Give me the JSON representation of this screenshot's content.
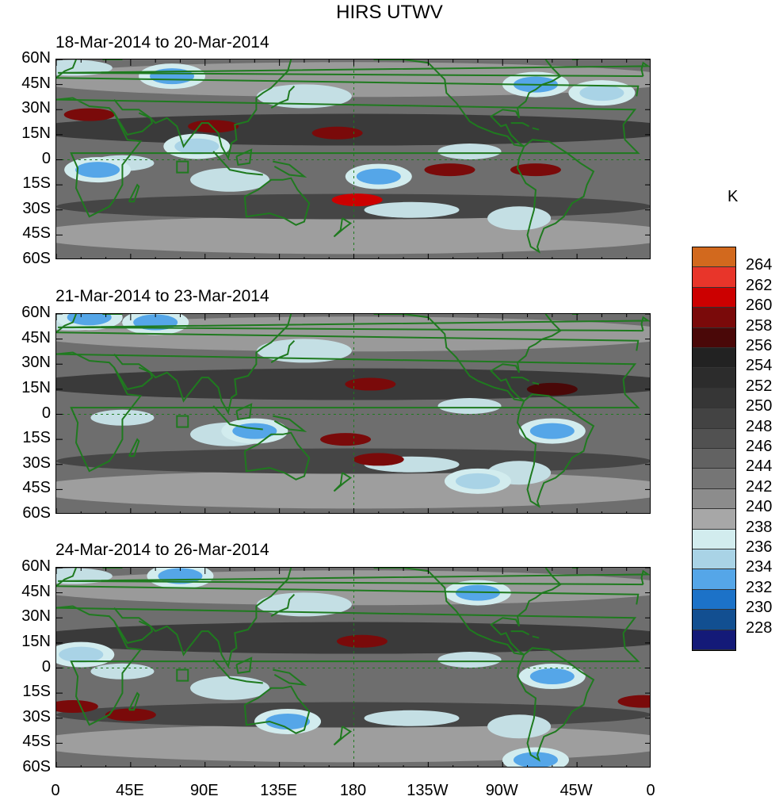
{
  "chart_data": {
    "type": "heatmap",
    "title": "HIRS UTWV",
    "unit": "K",
    "panels": [
      {
        "subtitle": "18-Mar-2014 to 20-Mar-2014",
        "features": [
          {
            "kind": "warm",
            "lon": 170,
            "lat": 16,
            "value": 258
          },
          {
            "kind": "warm",
            "lon": 182,
            "lat": -24,
            "value": 260
          },
          {
            "kind": "warm",
            "lon": 20,
            "lat": 27,
            "value": 258
          },
          {
            "kind": "warm",
            "lon": 95,
            "lat": 20,
            "value": 258
          },
          {
            "kind": "warm",
            "lon": 238,
            "lat": -6,
            "value": 258
          },
          {
            "kind": "warm",
            "lon": 290,
            "lat": -6,
            "value": 258
          },
          {
            "kind": "cool",
            "lon": 195,
            "lat": -10,
            "value": 232
          },
          {
            "kind": "cool",
            "lon": 25,
            "lat": -6,
            "value": 232
          },
          {
            "kind": "cool",
            "lon": 85,
            "lat": 8,
            "value": 234
          },
          {
            "kind": "cool",
            "lon": 290,
            "lat": 45,
            "value": 232
          },
          {
            "kind": "cool",
            "lon": 330,
            "lat": 40,
            "value": 234
          },
          {
            "kind": "cool",
            "lon": 70,
            "lat": 50,
            "value": 232
          }
        ]
      },
      {
        "subtitle": "21-Mar-2014 to 23-Mar-2014",
        "features": [
          {
            "kind": "warm",
            "lon": 190,
            "lat": 18,
            "value": 258
          },
          {
            "kind": "warm",
            "lon": 195,
            "lat": -27,
            "value": 258
          },
          {
            "kind": "warm",
            "lon": 175,
            "lat": -15,
            "value": 258
          },
          {
            "kind": "warm",
            "lon": 300,
            "lat": 15,
            "value": 256
          },
          {
            "kind": "cool",
            "lon": 300,
            "lat": -10,
            "value": 232
          },
          {
            "kind": "cool",
            "lon": 120,
            "lat": -10,
            "value": 232
          },
          {
            "kind": "cool",
            "lon": 60,
            "lat": 55,
            "value": 232
          },
          {
            "kind": "cool",
            "lon": 20,
            "lat": 58,
            "value": 232
          },
          {
            "kind": "cool",
            "lon": 255,
            "lat": -40,
            "value": 234
          }
        ]
      },
      {
        "subtitle": "24-Mar-2014 to 26-Mar-2014",
        "features": [
          {
            "kind": "warm",
            "lon": 185,
            "lat": 16,
            "value": 258
          },
          {
            "kind": "warm",
            "lon": 10,
            "lat": -23,
            "value": 258
          },
          {
            "kind": "warm",
            "lon": 45,
            "lat": -28,
            "value": 258
          },
          {
            "kind": "warm",
            "lon": 355,
            "lat": -20,
            "value": 258
          },
          {
            "kind": "cool",
            "lon": 140,
            "lat": -32,
            "value": 232
          },
          {
            "kind": "cool",
            "lon": 300,
            "lat": -5,
            "value": 232
          },
          {
            "kind": "cool",
            "lon": 255,
            "lat": 45,
            "value": 232
          },
          {
            "kind": "cool",
            "lon": 75,
            "lat": 55,
            "value": 232
          },
          {
            "kind": "cool",
            "lon": 290,
            "lat": -55,
            "value": 232
          },
          {
            "kind": "cool",
            "lon": 15,
            "lat": 8,
            "value": 234
          }
        ]
      }
    ],
    "x_ticks": [
      "0",
      "45E",
      "90E",
      "135E",
      "180",
      "135W",
      "90W",
      "45W",
      "0"
    ],
    "x_tick_lons": [
      0,
      45,
      90,
      135,
      180,
      225,
      270,
      315,
      360
    ],
    "y_ticks": [
      "60N",
      "45N",
      "30N",
      "15N",
      "0",
      "15S",
      "30S",
      "45S",
      "60S"
    ],
    "y_tick_lats": [
      60,
      45,
      30,
      15,
      0,
      -15,
      -30,
      -45,
      -60
    ],
    "xlim": [
      0,
      360
    ],
    "ylim": [
      -60,
      60
    ],
    "colorbar": {
      "levels": [
        "264",
        "262",
        "260",
        "258",
        "256",
        "254",
        "252",
        "250",
        "248",
        "246",
        "244",
        "242",
        "240",
        "238",
        "236",
        "234",
        "232",
        "230",
        "228"
      ],
      "colors": [
        "#d2691e",
        "#e8352a",
        "#cc0000",
        "#7a0a0a",
        "#4a0808",
        "#222222",
        "#2c2c2c",
        "#363636",
        "#434343",
        "#515151",
        "#626262",
        "#757575",
        "#8c8c8c",
        "#a7a7a7",
        "#d2ecee",
        "#a9d3e6",
        "#55a6e8",
        "#1c72c8",
        "#124f91",
        "#141a78"
      ]
    }
  }
}
